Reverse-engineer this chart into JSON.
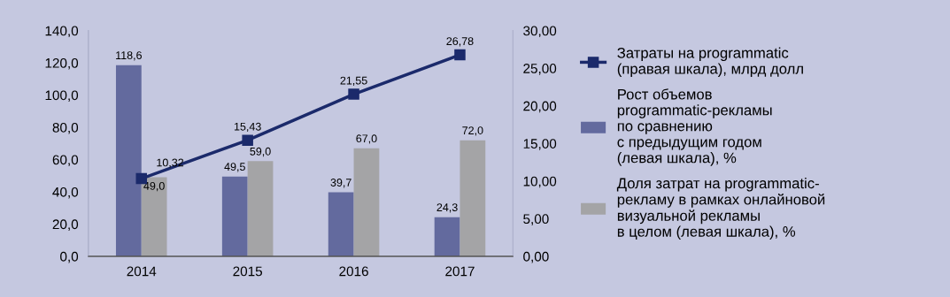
{
  "chart_data": {
    "type": "bar",
    "categories": [
      "2014",
      "2015",
      "2016",
      "2017"
    ],
    "series": [
      {
        "name": "Рост объемов\nprogrammatic-рекламы\nпо сравнению\nс предыдущим годом\n(левая шкала), %",
        "color": "#636a9e",
        "values": [
          118.6,
          49.5,
          39.7,
          24.3
        ],
        "value_labels": [
          "118,6",
          "49,5",
          "39,7",
          "24,3"
        ]
      },
      {
        "name": "Доля затрат на programmatic-\nрекламу в рамках онлайновой\nвизуальной рекламы\nв целом (левая шкала), %",
        "color": "#a4a4a6",
        "values": [
          49.0,
          59.0,
          67.0,
          72.0
        ],
        "value_labels": [
          "49,0",
          "59,0",
          "67,0",
          "72,0"
        ]
      },
      {
        "name": "Затраты на programmatic\n(правая шкала), млрд долл",
        "type": "line",
        "axis": "y2",
        "color": "#1b2a6b",
        "marker": "square",
        "values": [
          10.32,
          15.43,
          21.55,
          26.78
        ],
        "value_labels": [
          "10,32",
          "15,43",
          "21,55",
          "26,78"
        ]
      }
    ],
    "ylim": [
      0,
      140
    ],
    "yticks": [
      {
        "value": 0,
        "label": "0,0"
      },
      {
        "value": 20,
        "label": "20,0"
      },
      {
        "value": 40,
        "label": "40,0"
      },
      {
        "value": 60,
        "label": "60,0"
      },
      {
        "value": 80,
        "label": "80,0"
      },
      {
        "value": 100,
        "label": "100,0"
      },
      {
        "value": 120,
        "label": "120,0"
      },
      {
        "value": 140,
        "label": "140,0"
      }
    ],
    "y2lim": [
      0,
      30
    ],
    "y2ticks": [
      {
        "value": 0,
        "label": "0,00"
      },
      {
        "value": 5,
        "label": "5,00"
      },
      {
        "value": 10,
        "label": "10,00"
      },
      {
        "value": 15,
        "label": "15,00"
      },
      {
        "value": 20,
        "label": "20,00"
      },
      {
        "value": 25,
        "label": "25,00"
      },
      {
        "value": 30,
        "label": "30,00"
      }
    ],
    "legend": "right",
    "grid": false
  }
}
